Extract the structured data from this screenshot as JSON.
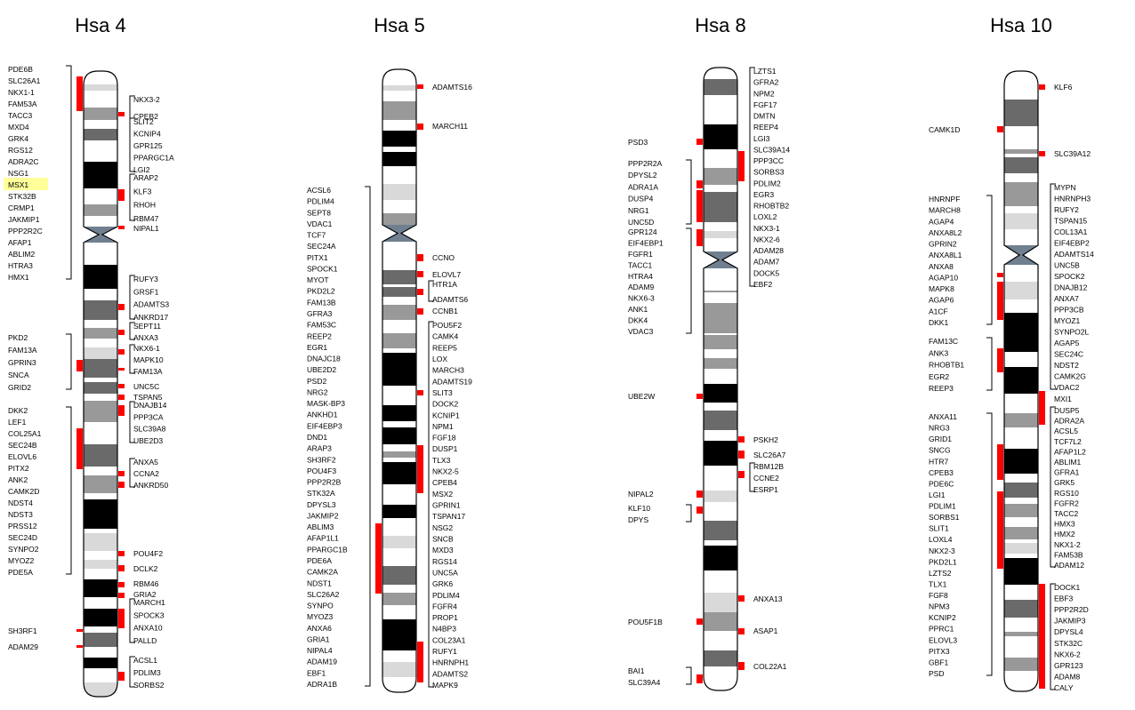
{
  "chromosomes": [
    {
      "title": "Hsa 4",
      "highlighted_gene": "MSX1",
      "left_groups": [
        {
          "genes": [
            "PDE6B",
            "SLC26A1",
            "NKX1-1",
            "FAM53A",
            "TACC3",
            "MXD4",
            "GRK4",
            "RGS12",
            "ADRA2C",
            "NSG1",
            "MSX1",
            "STK32B",
            "CRMP1",
            "JAKMIP1",
            "PPP2R2C",
            "AFAP1",
            "ABLIM2",
            "HTRA3",
            "HMX1"
          ]
        },
        {
          "genes": [
            "PKD2",
            "FAM13A",
            "GPRIN3",
            "SNCA",
            "GRID2"
          ]
        },
        {
          "genes": [
            "DKK2",
            "LEF1",
            "COL25A1",
            "SEC24B",
            "ELOVL6",
            "PITX2",
            "ANK2",
            "CAMK2D",
            "NDST4",
            "NDST3",
            "PRSS12",
            "SEC24D",
            "SYNPO2",
            "MYOZ2",
            "PDE5A"
          ]
        },
        {
          "genes": [
            "SH3RF1"
          ]
        },
        {
          "genes": [
            "ADAM29"
          ]
        }
      ],
      "right_groups": [
        {
          "genes": [
            "NKX3-2",
            "CPEB2"
          ]
        },
        {
          "genes": [
            "SLIT2",
            "KCNIP4",
            "GPR125",
            "PPARGC1A",
            "LGI2"
          ]
        },
        {
          "genes": [
            "ARAP2",
            "KLF3",
            "RHOH",
            "RBM47"
          ]
        },
        {
          "genes": [
            "NIPAL1"
          ]
        },
        {
          "genes": [
            "RUFY3",
            "GRSF1",
            "ADAMTS3",
            "ANKRD17"
          ]
        },
        {
          "genes": [
            "SEPT11",
            "ANXA3"
          ]
        },
        {
          "genes": [
            "NKX6-1",
            "MAPK10",
            "FAM13A"
          ]
        },
        {
          "genes": [
            "UNC5C"
          ]
        },
        {
          "genes": [
            "TSPAN5"
          ]
        },
        {
          "genes": [
            "DNAJB14",
            "PPP3CA",
            "SLC39A8",
            "UBE2D3"
          ]
        },
        {
          "genes": [
            "ANXA5",
            "CCNA2",
            "ANKRD50"
          ]
        },
        {
          "genes": [
            "POU4F2"
          ]
        },
        {
          "genes": [
            "DCLK2"
          ]
        },
        {
          "genes": [
            "RBM46"
          ]
        },
        {
          "genes": [
            "GRIA2"
          ]
        },
        {
          "genes": [
            "MARCH1",
            "SPOCK3",
            "ANXA10",
            "PALLD"
          ]
        },
        {
          "genes": [
            "ACSL1",
            "PDLIM3",
            "SORBS2"
          ]
        }
      ]
    },
    {
      "title": "Hsa 5",
      "left_groups": [
        {
          "genes": [
            "ACSL6",
            "PDLIM4",
            "SEPT8",
            "VDAC1",
            "TCF7",
            "SEC24A",
            "PITX1",
            "SPOCK1",
            "MYOT",
            "PKD2L2",
            "FAM13B",
            "GFRA3",
            "FAM53C",
            "REEP2",
            "EGR1",
            "DNAJC18",
            "UBE2D2",
            "PSD2",
            "NRG2",
            "MASK-BP3",
            "ANKHD1",
            "EIF4EBP3",
            "DND1",
            "ARAP3",
            "SH3RF2",
            "POU4F3",
            "PPP2R2B",
            "STK32A",
            "DPYSL3",
            "JAKMIP2",
            "ABLIM3",
            "AFAP1L1",
            "PPARGC1B",
            "PDE6A",
            "CAMK2A",
            "NDST1",
            "SLC26A2",
            "SYNPO",
            "MYOZ3",
            "ANXA6",
            "GRIA1",
            "NIPAL4",
            "ADAM19",
            "EBF1",
            "ADRA1B"
          ]
        }
      ],
      "right_groups": [
        {
          "genes": [
            "ADAMTS16"
          ]
        },
        {
          "genes": [
            "MARCH11"
          ]
        },
        {
          "genes": [
            "CCNO"
          ]
        },
        {
          "genes": [
            "ELOVL7"
          ]
        },
        {
          "genes": [
            "HTR1A",
            "ADAMTS6"
          ]
        },
        {
          "genes": [
            "CCNB1"
          ]
        },
        {
          "genes": [
            "POU5F2",
            "CAMK4",
            "REEP5",
            "LOX",
            "MARCH3",
            "ADAMTS19",
            "SLIT3",
            "DOCK2",
            "KCNIP1",
            "NPM1",
            "FGF18",
            "DUSP1",
            "TLX3",
            "NKX2-5",
            "CPEB4",
            "MSX2",
            "GPRIN1",
            "TSPAN17",
            "NSG2",
            "SNCB",
            "MXD3",
            "RGS14",
            "UNC5A",
            "GRK6",
            "PDLIM4",
            "FGFR4",
            "PROP1",
            "N4BP3",
            "COL23A1",
            "RUFY1",
            "HNRNPH1",
            "ADAMTS2",
            "MAPK9"
          ]
        }
      ]
    },
    {
      "title": "Hsa 8",
      "left_groups": [
        {
          "genes": [
            "PSD3"
          ]
        },
        {
          "genes": [
            "PPP2R2A",
            "DPYSL2",
            "ADRA1A",
            "DUSP4",
            "NRG1",
            "UNC5D"
          ]
        },
        {
          "genes": [
            "GPR124",
            "EIF4EBP1",
            "FGFR1",
            "TACC1",
            "HTRA4",
            "ADAM9",
            "NKX6-3",
            "ANK1",
            "DKK4",
            "VDAC3"
          ]
        },
        {
          "genes": [
            "UBE2W"
          ]
        },
        {
          "genes": [
            "NIPAL2"
          ]
        },
        {
          "genes": [
            "KLF10",
            "DPYS"
          ]
        },
        {
          "genes": [
            "POU5F1B"
          ]
        },
        {
          "genes": [
            "BAI1",
            "SLC39A4"
          ]
        }
      ],
      "right_groups": [
        {
          "genes": [
            "LZTS1",
            "GFRA2",
            "NPM2",
            "FGF17",
            "DMTN",
            "REEP4",
            "LGI3",
            "SLC39A14",
            "PPP3CC",
            "SORBS3",
            "PDLIM2",
            "EGR3",
            "RHOBTB2",
            "LOXL2",
            "NKX3-1",
            "NKX2-6",
            "ADAM28",
            "ADAM7",
            "DOCK5",
            "EBF2"
          ]
        },
        {
          "genes": [
            "PSKH2"
          ]
        },
        {
          "genes": [
            "SLC26A7"
          ]
        },
        {
          "genes": [
            "RBM12B",
            "CCNE2",
            "ESRP1"
          ]
        },
        {
          "genes": [
            "ANXA13"
          ]
        },
        {
          "genes": [
            "ASAP1"
          ]
        },
        {
          "genes": [
            "COL22A1"
          ]
        }
      ]
    },
    {
      "title": "Hsa 10",
      "left_groups": [
        {
          "genes": [
            "CAMK1D"
          ]
        },
        {
          "genes": [
            "HNRNPF",
            "MARCH8",
            "AGAP4",
            "ANXA8L2",
            "GPRIN2",
            "ANXA8L1",
            "ANXA8",
            "AGAP10",
            "MAPK8",
            "AGAP6",
            "A1CF",
            "DKK1"
          ]
        },
        {
          "genes": [
            "FAM13C",
            "ANK3",
            "RHOBTB1",
            "EGR2",
            "REEP3"
          ]
        },
        {
          "genes": [
            "ANXA11",
            "NRG3",
            "GRID1",
            "SNCG",
            "HTR7",
            "CPEB3",
            "PDE6C",
            "LGI1",
            "PDLIM1",
            "SORBS1",
            "SLIT1",
            "LOXL4",
            "NKX2-3",
            "PKD2L1",
            "LZTS2",
            "TLX1",
            "FGF8",
            "NPM3",
            "KCNIP2",
            "PPRC1",
            "ELOVL3",
            "PITX3",
            "GBF1",
            "PSD"
          ]
        }
      ],
      "right_groups": [
        {
          "genes": [
            "KLF6"
          ]
        },
        {
          "genes": [
            "SLC39A12"
          ]
        },
        {
          "genes": [
            "MYPN",
            "HNRNPH3",
            "RUFY2",
            "TSPAN15",
            "COL13A1",
            "EIF4EBP2",
            "ADAMTS14",
            "UNC5B",
            "SPOCK2",
            "DNAJB12",
            "ANXA7",
            "PPP3CB",
            "MYOZ1",
            "SYNPO2L",
            "AGAP5",
            "SEC24C",
            "NDST2",
            "CAMK2G",
            "VDAC2"
          ]
        },
        {
          "genes": [
            "MXI1"
          ]
        },
        {
          "genes": [
            "DUSP5",
            "ADRA2A",
            "ACSL5",
            "TCF7L2",
            "AFAP1L2",
            "ABLIM1",
            "GFRA1",
            "GRK5",
            "RGS10",
            "FGFR2",
            "TACC2",
            "HMX3",
            "HMX2",
            "NKX1-2",
            "FAM53B",
            "ADAM12"
          ]
        },
        {
          "genes": [
            "DOCK1",
            "EBF3",
            "PPP2R2D",
            "JAKMIP3",
            "DPYSL4",
            "STK32C",
            "NKX6-2",
            "GPR123",
            "ADAM8",
            "CALY"
          ]
        }
      ]
    }
  ]
}
